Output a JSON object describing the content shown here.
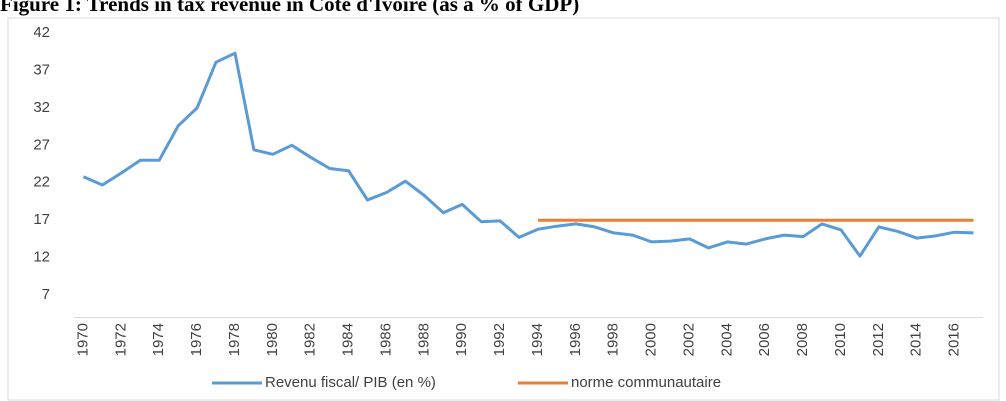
{
  "chart_data": {
    "type": "line",
    "title": "Figure 1: Trends in tax revenue in Côte d'Ivoire (as a % of GDP)",
    "categories": [
      "1970",
      null,
      "1972",
      null,
      "1974",
      null,
      "1976",
      null,
      "1978",
      null,
      "1980",
      null,
      "1982",
      null,
      "1984",
      null,
      "1986",
      null,
      "1988",
      null,
      "1990",
      null,
      "1992",
      null,
      "1994",
      null,
      "1996",
      null,
      "1998",
      null,
      "2000",
      null,
      "2002",
      null,
      "2004",
      null,
      "2006",
      null,
      "2008",
      null,
      "2010",
      null,
      "2012",
      null,
      "2014",
      null,
      "2016",
      null
    ],
    "series": [
      {
        "name": "Revenu fiscal/ PIB (en %)",
        "color": "#5b9bd5",
        "values": [
          22.8,
          21.7,
          23.3,
          25,
          25,
          29.6,
          32,
          38.1,
          39.3,
          26.4,
          25.8,
          27,
          25.4,
          23.9,
          23.6,
          19.7,
          20.7,
          22.2,
          20.3,
          18,
          19.1,
          16.8,
          16.9,
          14.7,
          15.8,
          16.2,
          16.5,
          16.1,
          15.3,
          15,
          14.1,
          14.2,
          14.5,
          13.3,
          14.1,
          13.8,
          14.5,
          15,
          14.8,
          16.5,
          15.7,
          12.2,
          16.1,
          15.5,
          14.6,
          14.9,
          15.4,
          15.3
        ]
      },
      {
        "name": "norme communautaire",
        "color": "#ed7d31",
        "values": [
          null,
          null,
          null,
          null,
          null,
          null,
          null,
          null,
          null,
          null,
          null,
          null,
          null,
          null,
          null,
          null,
          null,
          null,
          null,
          null,
          null,
          null,
          null,
          null,
          17,
          17,
          17,
          17,
          17,
          17,
          17,
          17,
          17,
          17,
          17,
          17,
          17,
          17,
          17,
          17,
          17,
          17,
          17,
          17,
          17,
          17,
          17,
          17
        ]
      }
    ],
    "ylim": [
      4,
      42
    ],
    "yticks": [
      7,
      12,
      17,
      22,
      27,
      32,
      37,
      42
    ],
    "grid": false,
    "legend": "bottom"
  }
}
